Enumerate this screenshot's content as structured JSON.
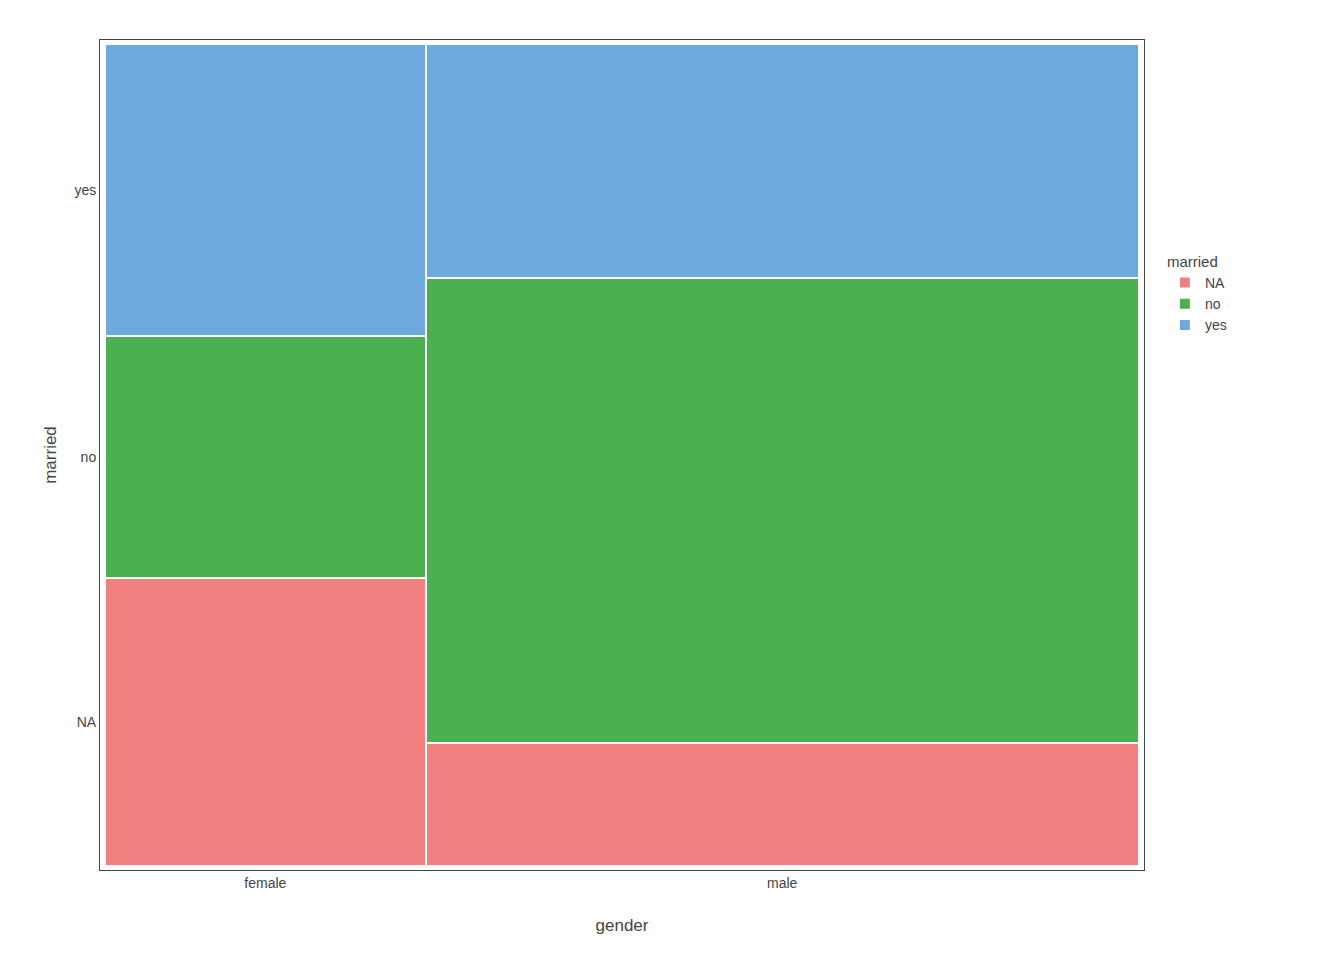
{
  "chart_data": {
    "type": "mosaic",
    "xlabel": "gender",
    "ylabel": "married",
    "legend_title": "married",
    "categories": [
      "female",
      "male"
    ],
    "widths": [
      0.31,
      0.69
    ],
    "series": [
      {
        "name": "NA",
        "color": "#F08080",
        "values": [
          0.35,
          0.15
        ]
      },
      {
        "name": "no",
        "color": "#4CAF50",
        "values": [
          0.295,
          0.565
        ]
      },
      {
        "name": "yes",
        "color": "#6FA8DC",
        "values": [
          0.355,
          0.285
        ]
      }
    ],
    "stacked": true,
    "xlim": [
      -0.005,
      1.005
    ],
    "ylim": [
      -0.005,
      1.005
    ],
    "grid": false,
    "legend": "right"
  }
}
